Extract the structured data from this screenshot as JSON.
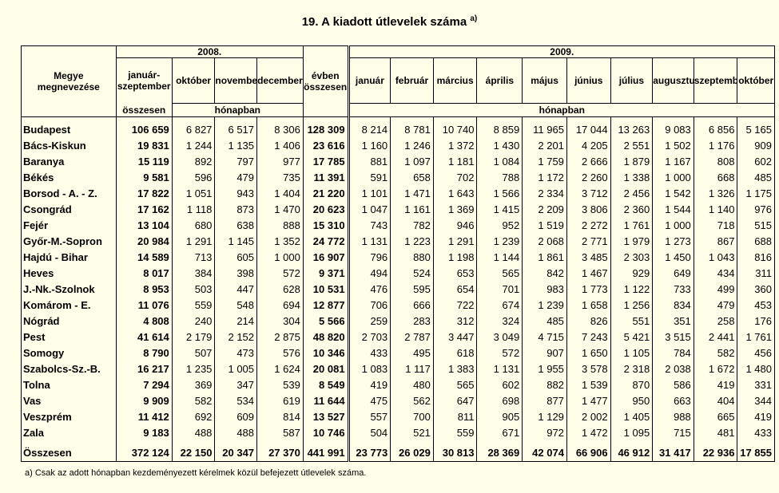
{
  "title": "19. A kiadott útlevelek száma",
  "title_note": "a)",
  "header": {
    "county_col": "Megye megnevezése",
    "year_2008": "2008.",
    "year_2009": "2009.",
    "jan_sep": "január-szeptember",
    "osszesen": "összesen",
    "honapban_2008": "hónapban",
    "honapban_2009": "hónapban",
    "evben_osszesen": "évben összesen",
    "months_2008": [
      "október",
      "november",
      "december"
    ],
    "months_2009": [
      "január",
      "február",
      "március",
      "április",
      "május",
      "június",
      "július",
      "augusztus",
      "szeptember",
      "október"
    ]
  },
  "rows": [
    {
      "name": "Budapest",
      "values": [
        "106 659",
        "6 827",
        "6 517",
        "8 306",
        "128 309",
        "8 214",
        "8 781",
        "10 740",
        "8 859",
        "11 965",
        "17 044",
        "13 263",
        "9 083",
        "6 856",
        "5 165"
      ]
    },
    {
      "name": "Bács-Kiskun",
      "values": [
        "19 831",
        "1 244",
        "1 135",
        "1 406",
        "23 616",
        "1 160",
        "1 246",
        "1 372",
        "1 430",
        "2 201",
        "4 205",
        "2 551",
        "1 502",
        "1 176",
        "909"
      ]
    },
    {
      "name": "Baranya",
      "values": [
        "15 119",
        "892",
        "797",
        "977",
        "17 785",
        "881",
        "1 097",
        "1 181",
        "1 084",
        "1 759",
        "2 666",
        "1 879",
        "1 167",
        "808",
        "602"
      ]
    },
    {
      "name": "Békés",
      "values": [
        "9 581",
        "596",
        "479",
        "735",
        "11 391",
        "591",
        "658",
        "702",
        "788",
        "1 172",
        "2 260",
        "1 338",
        "1 000",
        "668",
        "485"
      ]
    },
    {
      "name": "Borsod - A. - Z.",
      "values": [
        "17 822",
        "1 051",
        "943",
        "1 404",
        "21 220",
        "1 101",
        "1 471",
        "1 643",
        "1 566",
        "2 334",
        "3 712",
        "2 456",
        "1 542",
        "1 326",
        "1 175"
      ]
    },
    {
      "name": "Csongrád",
      "values": [
        "17 162",
        "1 118",
        "873",
        "1 470",
        "20 623",
        "1 047",
        "1 161",
        "1 369",
        "1 415",
        "2 209",
        "3 806",
        "2 360",
        "1 544",
        "1 140",
        "976"
      ]
    },
    {
      "name": "Fejér",
      "values": [
        "13 104",
        "680",
        "638",
        "888",
        "15 310",
        "743",
        "782",
        "946",
        "952",
        "1 519",
        "2 272",
        "1 761",
        "1 000",
        "718",
        "515"
      ]
    },
    {
      "name": "Győr-M.-Sopron",
      "values": [
        "20 984",
        "1 291",
        "1 145",
        "1 352",
        "24 772",
        "1 131",
        "1 223",
        "1 291",
        "1 239",
        "2 068",
        "2 771",
        "1 979",
        "1 273",
        "867",
        "688"
      ]
    },
    {
      "name": "Hajdú - Bihar",
      "values": [
        "14 589",
        "713",
        "605",
        "1 000",
        "16 907",
        "796",
        "880",
        "1 198",
        "1 144",
        "1 861",
        "3 485",
        "2 303",
        "1 450",
        "1 043",
        "816"
      ]
    },
    {
      "name": "Heves",
      "values": [
        "8 017",
        "384",
        "398",
        "572",
        "9 371",
        "494",
        "524",
        "653",
        "565",
        "842",
        "1 467",
        "929",
        "649",
        "434",
        "311"
      ]
    },
    {
      "name": "J.-Nk.-Szolnok",
      "values": [
        "8 953",
        "503",
        "447",
        "628",
        "10 531",
        "476",
        "595",
        "654",
        "701",
        "983",
        "1 773",
        "1 122",
        "733",
        "499",
        "360"
      ]
    },
    {
      "name": "Komárom - E.",
      "values": [
        "11 076",
        "559",
        "548",
        "694",
        "12 877",
        "706",
        "666",
        "722",
        "674",
        "1 239",
        "1 658",
        "1 256",
        "834",
        "479",
        "453"
      ]
    },
    {
      "name": "Nógrád",
      "values": [
        "4 808",
        "240",
        "214",
        "304",
        "5 566",
        "259",
        "283",
        "312",
        "324",
        "485",
        "826",
        "551",
        "351",
        "258",
        "176"
      ]
    },
    {
      "name": "Pest",
      "values": [
        "41 614",
        "2 179",
        "2 152",
        "2 875",
        "48 820",
        "2 703",
        "2 787",
        "3 447",
        "3 049",
        "4 715",
        "7 243",
        "5 421",
        "3 515",
        "2 441",
        "1 761"
      ]
    },
    {
      "name": "Somogy",
      "values": [
        "8 790",
        "507",
        "473",
        "576",
        "10 346",
        "433",
        "495",
        "618",
        "572",
        "907",
        "1 650",
        "1 105",
        "784",
        "582",
        "456"
      ]
    },
    {
      "name": "Szabolcs-Sz.-B.",
      "values": [
        "16 217",
        "1 235",
        "1 005",
        "1 624",
        "20 081",
        "1 083",
        "1 117",
        "1 383",
        "1 131",
        "1 955",
        "3 578",
        "2 318",
        "2 038",
        "1 672",
        "1 480"
      ]
    },
    {
      "name": "Tolna",
      "values": [
        "7 294",
        "369",
        "347",
        "539",
        "8 549",
        "419",
        "480",
        "565",
        "602",
        "882",
        "1 539",
        "870",
        "586",
        "419",
        "331"
      ]
    },
    {
      "name": "Vas",
      "values": [
        "9 909",
        "582",
        "534",
        "619",
        "11 644",
        "475",
        "562",
        "647",
        "698",
        "877",
        "1 477",
        "950",
        "663",
        "404",
        "344"
      ]
    },
    {
      "name": "Veszprém",
      "values": [
        "11 412",
        "692",
        "609",
        "814",
        "13 527",
        "557",
        "700",
        "811",
        "905",
        "1 129",
        "2 002",
        "1 405",
        "988",
        "665",
        "419"
      ]
    },
    {
      "name": "Zala",
      "values": [
        "9 183",
        "488",
        "488",
        "587",
        "10 746",
        "504",
        "521",
        "559",
        "671",
        "972",
        "1 472",
        "1 095",
        "715",
        "481",
        "433"
      ]
    }
  ],
  "total": {
    "name": "Összesen",
    "values": [
      "372 124",
      "22 150",
      "20 347",
      "27 370",
      "441 991",
      "23 773",
      "26 029",
      "30 813",
      "28 369",
      "42 074",
      "66 906",
      "46 912",
      "31 417",
      "22 936",
      "17 855"
    ]
  },
  "footnote": "a) Csak az adott hónapban kezdeményezett kérelmek közül befejezett útlevelek száma."
}
